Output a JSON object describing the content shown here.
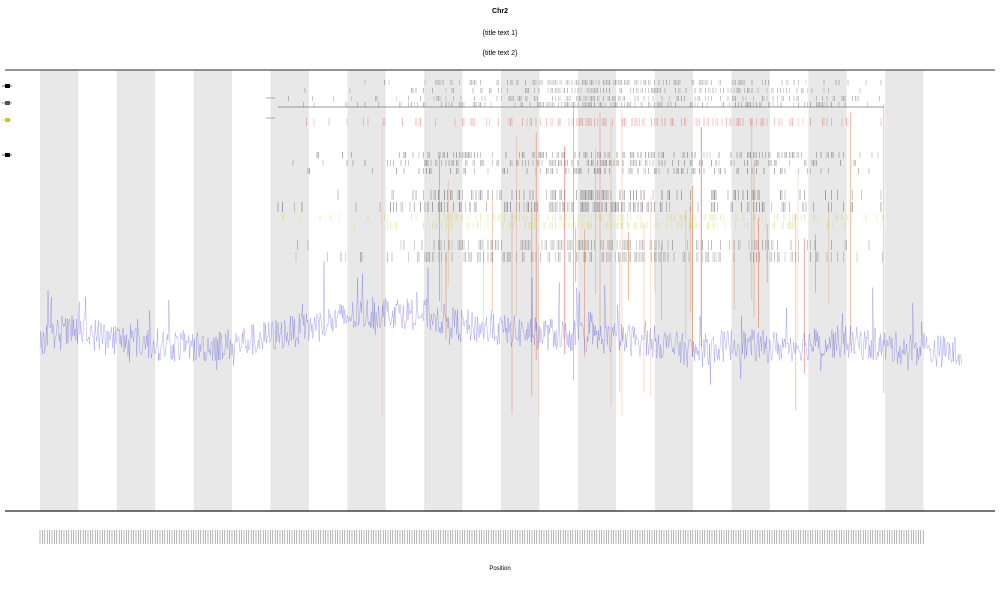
{
  "chart_data": {
    "type": "line",
    "title": "Chr2",
    "subtitle_lines": [
      "{title text 1}",
      "{title text 2}"
    ],
    "xlabel": "Position",
    "ylabel": "",
    "x_range": [
      0,
      24
    ],
    "grid": false,
    "background_bands": {
      "count": 24,
      "pattern": "alternating",
      "colors": [
        "#e8e8e8",
        "#ffffff"
      ]
    },
    "legend": {
      "placement": "top-left",
      "entries": [
        {
          "name": "",
          "color": "#000000"
        },
        {
          "name": "",
          "color": "#555555"
        },
        {
          "name": "",
          "color": "#c9c930"
        },
        {
          "name": "",
          "color": "#000000"
        }
      ]
    },
    "track_labels": [
      "",
      ""
    ],
    "series": [
      {
        "role": "signal-line",
        "color": "#3b3fd9",
        "opacity": 0.45,
        "levels": [
          0.52,
          0.55,
          0.52,
          0.5,
          0.49,
          0.5,
          0.53,
          0.56,
          0.6,
          0.62,
          0.61,
          0.57,
          0.55,
          0.54,
          0.53,
          0.52,
          0.51,
          0.47,
          0.5,
          0.49,
          0.5,
          0.51,
          0.49,
          0.48,
          0.47
        ]
      },
      {
        "role": "hit-track",
        "color": "#000000",
        "rows": 4
      },
      {
        "role": "hit-track",
        "color": "#d03030",
        "rows": 1
      },
      {
        "role": "hit-track",
        "color": "#000000",
        "rows": 3
      },
      {
        "role": "hit-track",
        "color": "#000000",
        "rows": 2
      },
      {
        "role": "hit-track",
        "color": "#c9c930",
        "rows": 2
      },
      {
        "role": "hit-track",
        "color": "#000000",
        "rows": 2
      },
      {
        "role": "vertical-lines",
        "color": "#e0703a"
      }
    ],
    "x_tick_labels_note": "dense unreadable tick labels"
  }
}
